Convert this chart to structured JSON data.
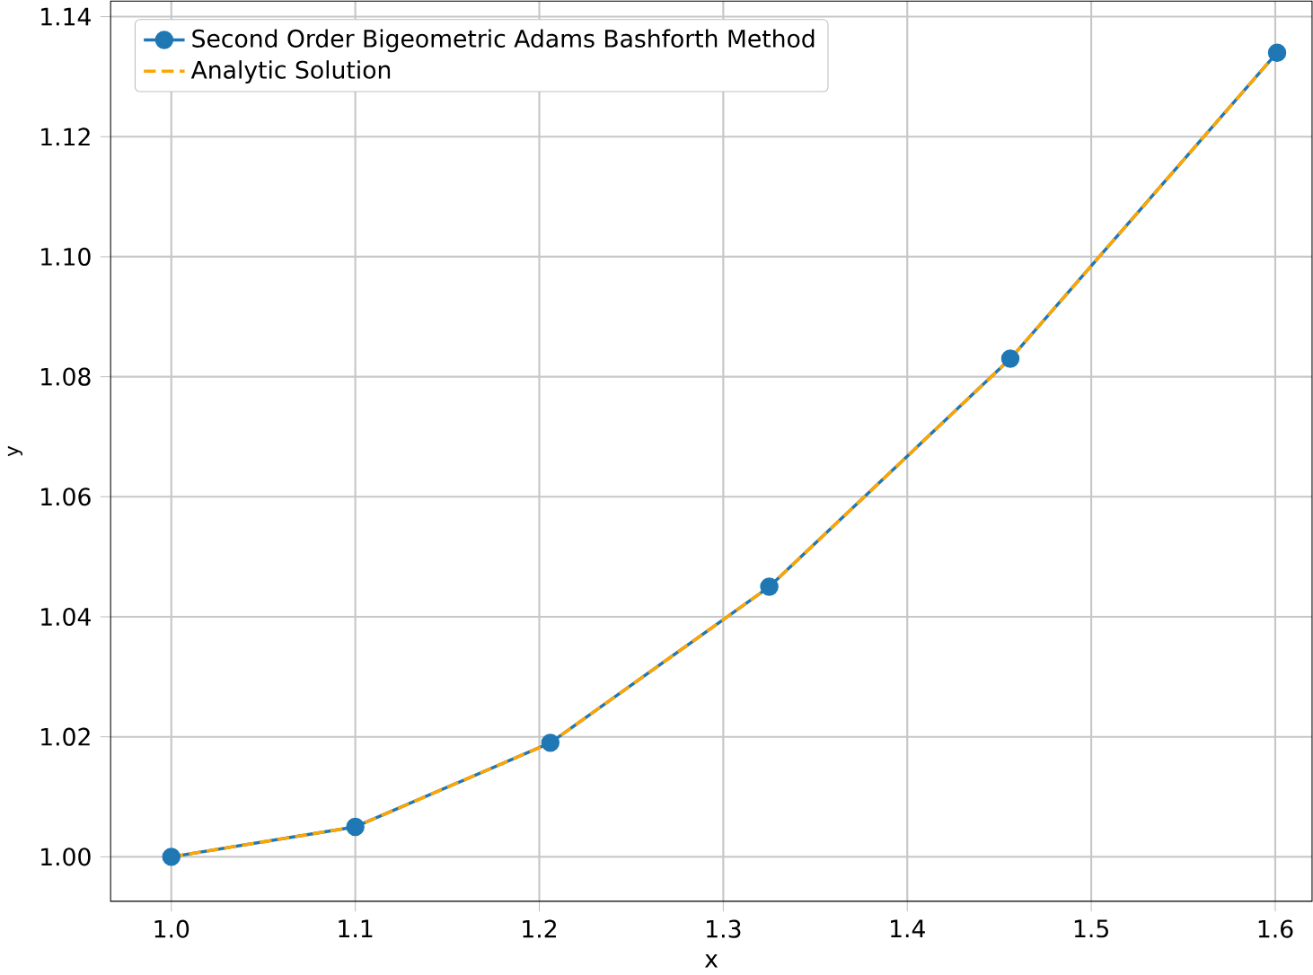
{
  "chart_data": {
    "type": "line",
    "xlabel": "x",
    "ylabel": "y",
    "x": [
      1.0,
      1.1,
      1.206,
      1.325,
      1.456,
      1.601
    ],
    "series": [
      {
        "name": "Second Order Bigeometric Adams Bashforth Method",
        "color": "#1f77b4",
        "marker": "circle",
        "line_style": "solid",
        "values": [
          1.0,
          1.005,
          1.019,
          1.045,
          1.083,
          1.134
        ]
      },
      {
        "name": "Analytic Solution",
        "color": "#ffa500",
        "marker": "none",
        "line_style": "dashed",
        "values": [
          1.0,
          1.005,
          1.019,
          1.045,
          1.083,
          1.134
        ]
      }
    ],
    "xlim": [
      0.967,
      1.62
    ],
    "ylim": [
      0.9926,
      1.1426
    ],
    "xticks": [
      {
        "value": 1.0,
        "label": "1.0"
      },
      {
        "value": 1.1,
        "label": "1.1"
      },
      {
        "value": 1.2,
        "label": "1.2"
      },
      {
        "value": 1.3,
        "label": "1.3"
      },
      {
        "value": 1.4,
        "label": "1.4"
      },
      {
        "value": 1.5,
        "label": "1.5"
      },
      {
        "value": 1.6,
        "label": "1.6"
      }
    ],
    "yticks": [
      {
        "value": 1.0,
        "label": "1.00"
      },
      {
        "value": 1.02,
        "label": "1.02"
      },
      {
        "value": 1.04,
        "label": "1.04"
      },
      {
        "value": 1.06,
        "label": "1.06"
      },
      {
        "value": 1.08,
        "label": "1.08"
      },
      {
        "value": 1.1,
        "label": "1.10"
      },
      {
        "value": 1.12,
        "label": "1.12"
      },
      {
        "value": 1.14,
        "label": "1.14"
      }
    ],
    "grid": true,
    "legend": "top left"
  }
}
